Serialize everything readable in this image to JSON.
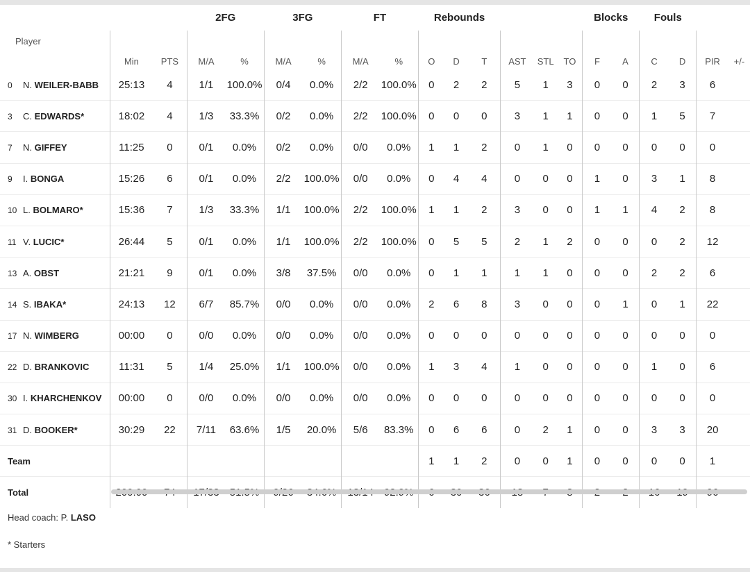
{
  "header": {
    "groups": {
      "fg2": "2FG",
      "fg3": "3FG",
      "ft": "FT",
      "rebounds": "Rebounds",
      "blocks": "Blocks",
      "fouls": "Fouls"
    },
    "cols": {
      "player": "Player",
      "min": "Min",
      "pts": "PTS",
      "fg2_ma": "M/A",
      "fg2_pct": "%",
      "fg3_ma": "M/A",
      "fg3_pct": "%",
      "ft_ma": "M/A",
      "ft_pct": "%",
      "o": "O",
      "d": "D",
      "t": "T",
      "ast": "AST",
      "stl": "STL",
      "to": "TO",
      "bf": "F",
      "ba": "A",
      "fc": "C",
      "fd": "D",
      "pir": "PIR",
      "pm": "+/-"
    }
  },
  "players": [
    {
      "num": "0",
      "ini": "N.",
      "last": "WEILER-BABB",
      "min": "25:13",
      "pts": "4",
      "fg2": "1/1",
      "fg2p": "100.0%",
      "fg3": "0/4",
      "fg3p": "0.0%",
      "ft": "2/2",
      "ftp": "100.0%",
      "o": "0",
      "d": "2",
      "t": "2",
      "ast": "5",
      "stl": "1",
      "to": "3",
      "bf": "0",
      "ba": "0",
      "fc": "2",
      "fd": "3",
      "pir": "6"
    },
    {
      "num": "3",
      "ini": "C.",
      "last": "EDWARDS*",
      "min": "18:02",
      "pts": "4",
      "fg2": "1/3",
      "fg2p": "33.3%",
      "fg3": "0/2",
      "fg3p": "0.0%",
      "ft": "2/2",
      "ftp": "100.0%",
      "o": "0",
      "d": "0",
      "t": "0",
      "ast": "3",
      "stl": "1",
      "to": "1",
      "bf": "0",
      "ba": "0",
      "fc": "1",
      "fd": "5",
      "pir": "7"
    },
    {
      "num": "7",
      "ini": "N.",
      "last": "GIFFEY",
      "min": "11:25",
      "pts": "0",
      "fg2": "0/1",
      "fg2p": "0.0%",
      "fg3": "0/2",
      "fg3p": "0.0%",
      "ft": "0/0",
      "ftp": "0.0%",
      "o": "1",
      "d": "1",
      "t": "2",
      "ast": "0",
      "stl": "1",
      "to": "0",
      "bf": "0",
      "ba": "0",
      "fc": "0",
      "fd": "0",
      "pir": "0"
    },
    {
      "num": "9",
      "ini": "I.",
      "last": "BONGA",
      "min": "15:26",
      "pts": "6",
      "fg2": "0/1",
      "fg2p": "0.0%",
      "fg3": "2/2",
      "fg3p": "100.0%",
      "ft": "0/0",
      "ftp": "0.0%",
      "o": "0",
      "d": "4",
      "t": "4",
      "ast": "0",
      "stl": "0",
      "to": "0",
      "bf": "1",
      "ba": "0",
      "fc": "3",
      "fd": "1",
      "pir": "8"
    },
    {
      "num": "10",
      "ini": "L.",
      "last": "BOLMARO*",
      "min": "15:36",
      "pts": "7",
      "fg2": "1/3",
      "fg2p": "33.3%",
      "fg3": "1/1",
      "fg3p": "100.0%",
      "ft": "2/2",
      "ftp": "100.0%",
      "o": "1",
      "d": "1",
      "t": "2",
      "ast": "3",
      "stl": "0",
      "to": "0",
      "bf": "1",
      "ba": "1",
      "fc": "4",
      "fd": "2",
      "pir": "8"
    },
    {
      "num": "11",
      "ini": "V.",
      "last": "LUCIC*",
      "min": "26:44",
      "pts": "5",
      "fg2": "0/1",
      "fg2p": "0.0%",
      "fg3": "1/1",
      "fg3p": "100.0%",
      "ft": "2/2",
      "ftp": "100.0%",
      "o": "0",
      "d": "5",
      "t": "5",
      "ast": "2",
      "stl": "1",
      "to": "2",
      "bf": "0",
      "ba": "0",
      "fc": "0",
      "fd": "2",
      "pir": "12"
    },
    {
      "num": "13",
      "ini": "A.",
      "last": "OBST",
      "min": "21:21",
      "pts": "9",
      "fg2": "0/1",
      "fg2p": "0.0%",
      "fg3": "3/8",
      "fg3p": "37.5%",
      "ft": "0/0",
      "ftp": "0.0%",
      "o": "0",
      "d": "1",
      "t": "1",
      "ast": "1",
      "stl": "1",
      "to": "0",
      "bf": "0",
      "ba": "0",
      "fc": "2",
      "fd": "2",
      "pir": "6"
    },
    {
      "num": "14",
      "ini": "S.",
      "last": "IBAKA*",
      "min": "24:13",
      "pts": "12",
      "fg2": "6/7",
      "fg2p": "85.7%",
      "fg3": "0/0",
      "fg3p": "0.0%",
      "ft": "0/0",
      "ftp": "0.0%",
      "o": "2",
      "d": "6",
      "t": "8",
      "ast": "3",
      "stl": "0",
      "to": "0",
      "bf": "0",
      "ba": "1",
      "fc": "0",
      "fd": "1",
      "pir": "22"
    },
    {
      "num": "17",
      "ini": "N.",
      "last": "WIMBERG",
      "min": "00:00",
      "pts": "0",
      "fg2": "0/0",
      "fg2p": "0.0%",
      "fg3": "0/0",
      "fg3p": "0.0%",
      "ft": "0/0",
      "ftp": "0.0%",
      "o": "0",
      "d": "0",
      "t": "0",
      "ast": "0",
      "stl": "0",
      "to": "0",
      "bf": "0",
      "ba": "0",
      "fc": "0",
      "fd": "0",
      "pir": "0"
    },
    {
      "num": "22",
      "ini": "D.",
      "last": "BRANKOVIC",
      "min": "11:31",
      "pts": "5",
      "fg2": "1/4",
      "fg2p": "25.0%",
      "fg3": "1/1",
      "fg3p": "100.0%",
      "ft": "0/0",
      "ftp": "0.0%",
      "o": "1",
      "d": "3",
      "t": "4",
      "ast": "1",
      "stl": "0",
      "to": "0",
      "bf": "0",
      "ba": "0",
      "fc": "1",
      "fd": "0",
      "pir": "6"
    },
    {
      "num": "30",
      "ini": "I.",
      "last": "KHARCHENKOV",
      "min": "00:00",
      "pts": "0",
      "fg2": "0/0",
      "fg2p": "0.0%",
      "fg3": "0/0",
      "fg3p": "0.0%",
      "ft": "0/0",
      "ftp": "0.0%",
      "o": "0",
      "d": "0",
      "t": "0",
      "ast": "0",
      "stl": "0",
      "to": "0",
      "bf": "0",
      "ba": "0",
      "fc": "0",
      "fd": "0",
      "pir": "0"
    },
    {
      "num": "31",
      "ini": "D.",
      "last": "BOOKER*",
      "min": "30:29",
      "pts": "22",
      "fg2": "7/11",
      "fg2p": "63.6%",
      "fg3": "1/5",
      "fg3p": "20.0%",
      "ft": "5/6",
      "ftp": "83.3%",
      "o": "0",
      "d": "6",
      "t": "6",
      "ast": "0",
      "stl": "2",
      "to": "1",
      "bf": "0",
      "ba": "0",
      "fc": "3",
      "fd": "3",
      "pir": "20"
    }
  ],
  "team": {
    "label": "Team",
    "o": "1",
    "d": "1",
    "t": "2",
    "ast": "0",
    "stl": "0",
    "to": "1",
    "bf": "0",
    "ba": "0",
    "fc": "0",
    "fd": "0",
    "pir": "1"
  },
  "total": {
    "label": "Total",
    "min": "200:00",
    "pts": "74",
    "fg2": "17/33",
    "fg2p": "51.5%",
    "fg3": "9/26",
    "fg3p": "34.6%",
    "ft": "13/14",
    "ftp": "92.9%",
    "o": "6",
    "d": "30",
    "t": "36",
    "ast": "18",
    "stl": "7",
    "to": "8",
    "bf": "2",
    "ba": "2",
    "fc": "16",
    "fd": "19",
    "pir": "96"
  },
  "footer": {
    "coach_label": "Head coach: P.",
    "coach_name": "LASO",
    "starters_note": "* Starters"
  }
}
